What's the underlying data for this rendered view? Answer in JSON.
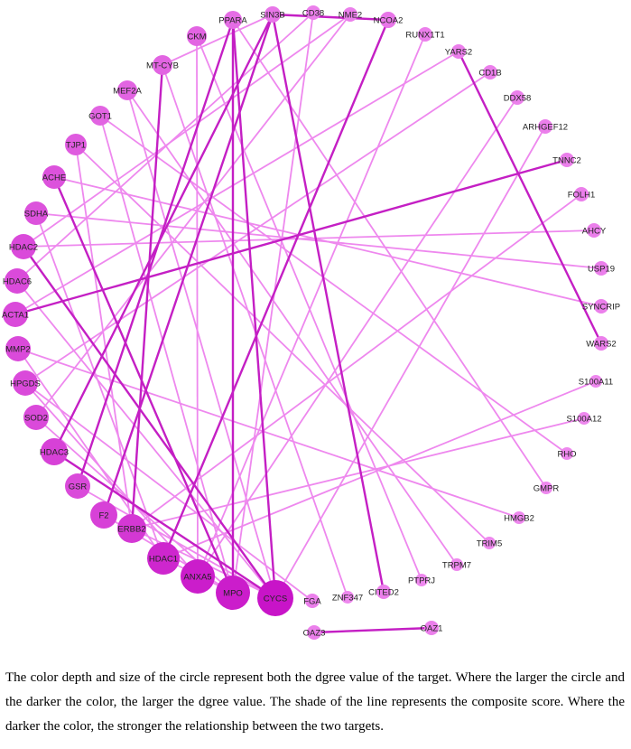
{
  "nodes": [
    {
      "label": "PPARA"
    },
    {
      "label": "SIN3B"
    },
    {
      "label": "CD38"
    },
    {
      "label": "NME2"
    },
    {
      "label": "NCOA2"
    },
    {
      "label": "RUNX1T1"
    },
    {
      "label": "YARS2"
    },
    {
      "label": "CD1B"
    },
    {
      "label": "DDX58"
    },
    {
      "label": "ARHGEF12"
    },
    {
      "label": "TNNC2"
    },
    {
      "label": "FOLH1"
    },
    {
      "label": "AHCY"
    },
    {
      "label": "USP19"
    },
    {
      "label": "SYNCRIP"
    },
    {
      "label": "WARS2"
    },
    {
      "label": "S100A11"
    },
    {
      "label": "S100A12"
    },
    {
      "label": "RHO"
    },
    {
      "label": "GMPR"
    },
    {
      "label": "HMGB2"
    },
    {
      "label": "TRIM5"
    },
    {
      "label": "TRPM7"
    },
    {
      "label": "PTPRJ"
    },
    {
      "label": "CITED2"
    },
    {
      "label": "ZNF347"
    },
    {
      "label": "FGA"
    },
    {
      "label": "CYCS"
    },
    {
      "label": "MPO"
    },
    {
      "label": "ANXA5"
    },
    {
      "label": "HDAC1"
    },
    {
      "label": "ERBB2"
    },
    {
      "label": "F2"
    },
    {
      "label": "GSR"
    },
    {
      "label": "HDAC3"
    },
    {
      "label": "SOD2"
    },
    {
      "label": "HPGDS"
    },
    {
      "label": "MMP2"
    },
    {
      "label": "ACTA1"
    },
    {
      "label": "HDAC6"
    },
    {
      "label": "HDAC2"
    },
    {
      "label": "SDHA"
    },
    {
      "label": "ACHE"
    },
    {
      "label": "TJP1"
    },
    {
      "label": "GOT1"
    },
    {
      "label": "MEF2A"
    },
    {
      "label": "MT-CYB"
    },
    {
      "label": "CKM"
    },
    {
      "label": "OAZ3"
    },
    {
      "label": "OAZ1"
    }
  ],
  "caption": "The color depth and size of the circle represent both the dgree value of the target. Where the larger the circle and the darker the color, the larger the dgree value. The shade of the line represents the composite score. Where the darker the color, the stronger the relationship between the two targets."
}
